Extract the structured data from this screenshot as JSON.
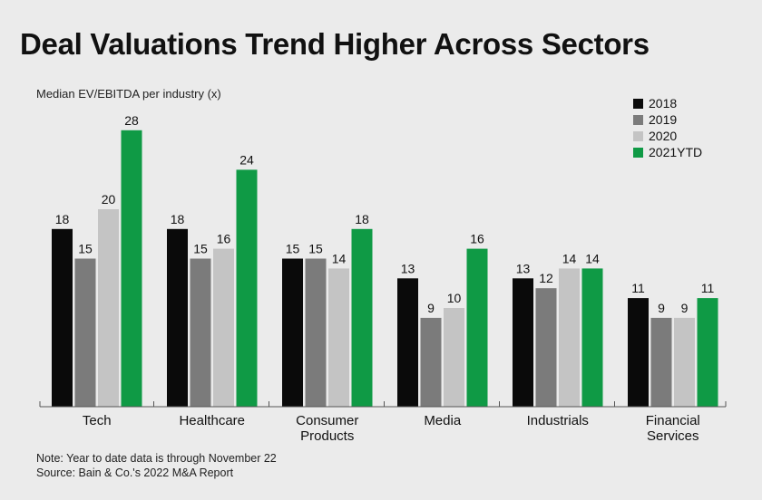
{
  "title": "Deal Valuations Trend Higher Across Sectors",
  "colors": {
    "2018": "#0a0a0a",
    "2019": "#7b7b7b",
    "2020": "#c4c4c4",
    "2021YTD": "#0f9a45",
    "axis": "#555555",
    "background": "#ebebeb"
  },
  "chart_data": {
    "type": "bar",
    "title": "Deal Valuations Trend Higher Across Sectors",
    "ylabel": "Median EV/EBITDA per industry (x)",
    "xlabel": "",
    "ylim": [
      0,
      30
    ],
    "grid": false,
    "legend_position": "top-right",
    "categories": [
      [
        "Tech"
      ],
      [
        "Healthcare"
      ],
      [
        "Consumer",
        "Products"
      ],
      [
        "Media"
      ],
      [
        "Industrials"
      ],
      [
        "Financial",
        "Services"
      ]
    ],
    "series": [
      {
        "name": "2018",
        "values": [
          18,
          18,
          15,
          13,
          13,
          11
        ]
      },
      {
        "name": "2019",
        "values": [
          15,
          15,
          15,
          9,
          12,
          9
        ]
      },
      {
        "name": "2020",
        "values": [
          20,
          16,
          14,
          10,
          14,
          9
        ]
      },
      {
        "name": "2021YTD",
        "values": [
          28,
          24,
          18,
          16,
          14,
          11
        ]
      }
    ]
  },
  "notes": {
    "line1": "Note: Year to date data is through November 22",
    "line2": "Source: Bain & Co.'s 2022 M&A Report"
  }
}
